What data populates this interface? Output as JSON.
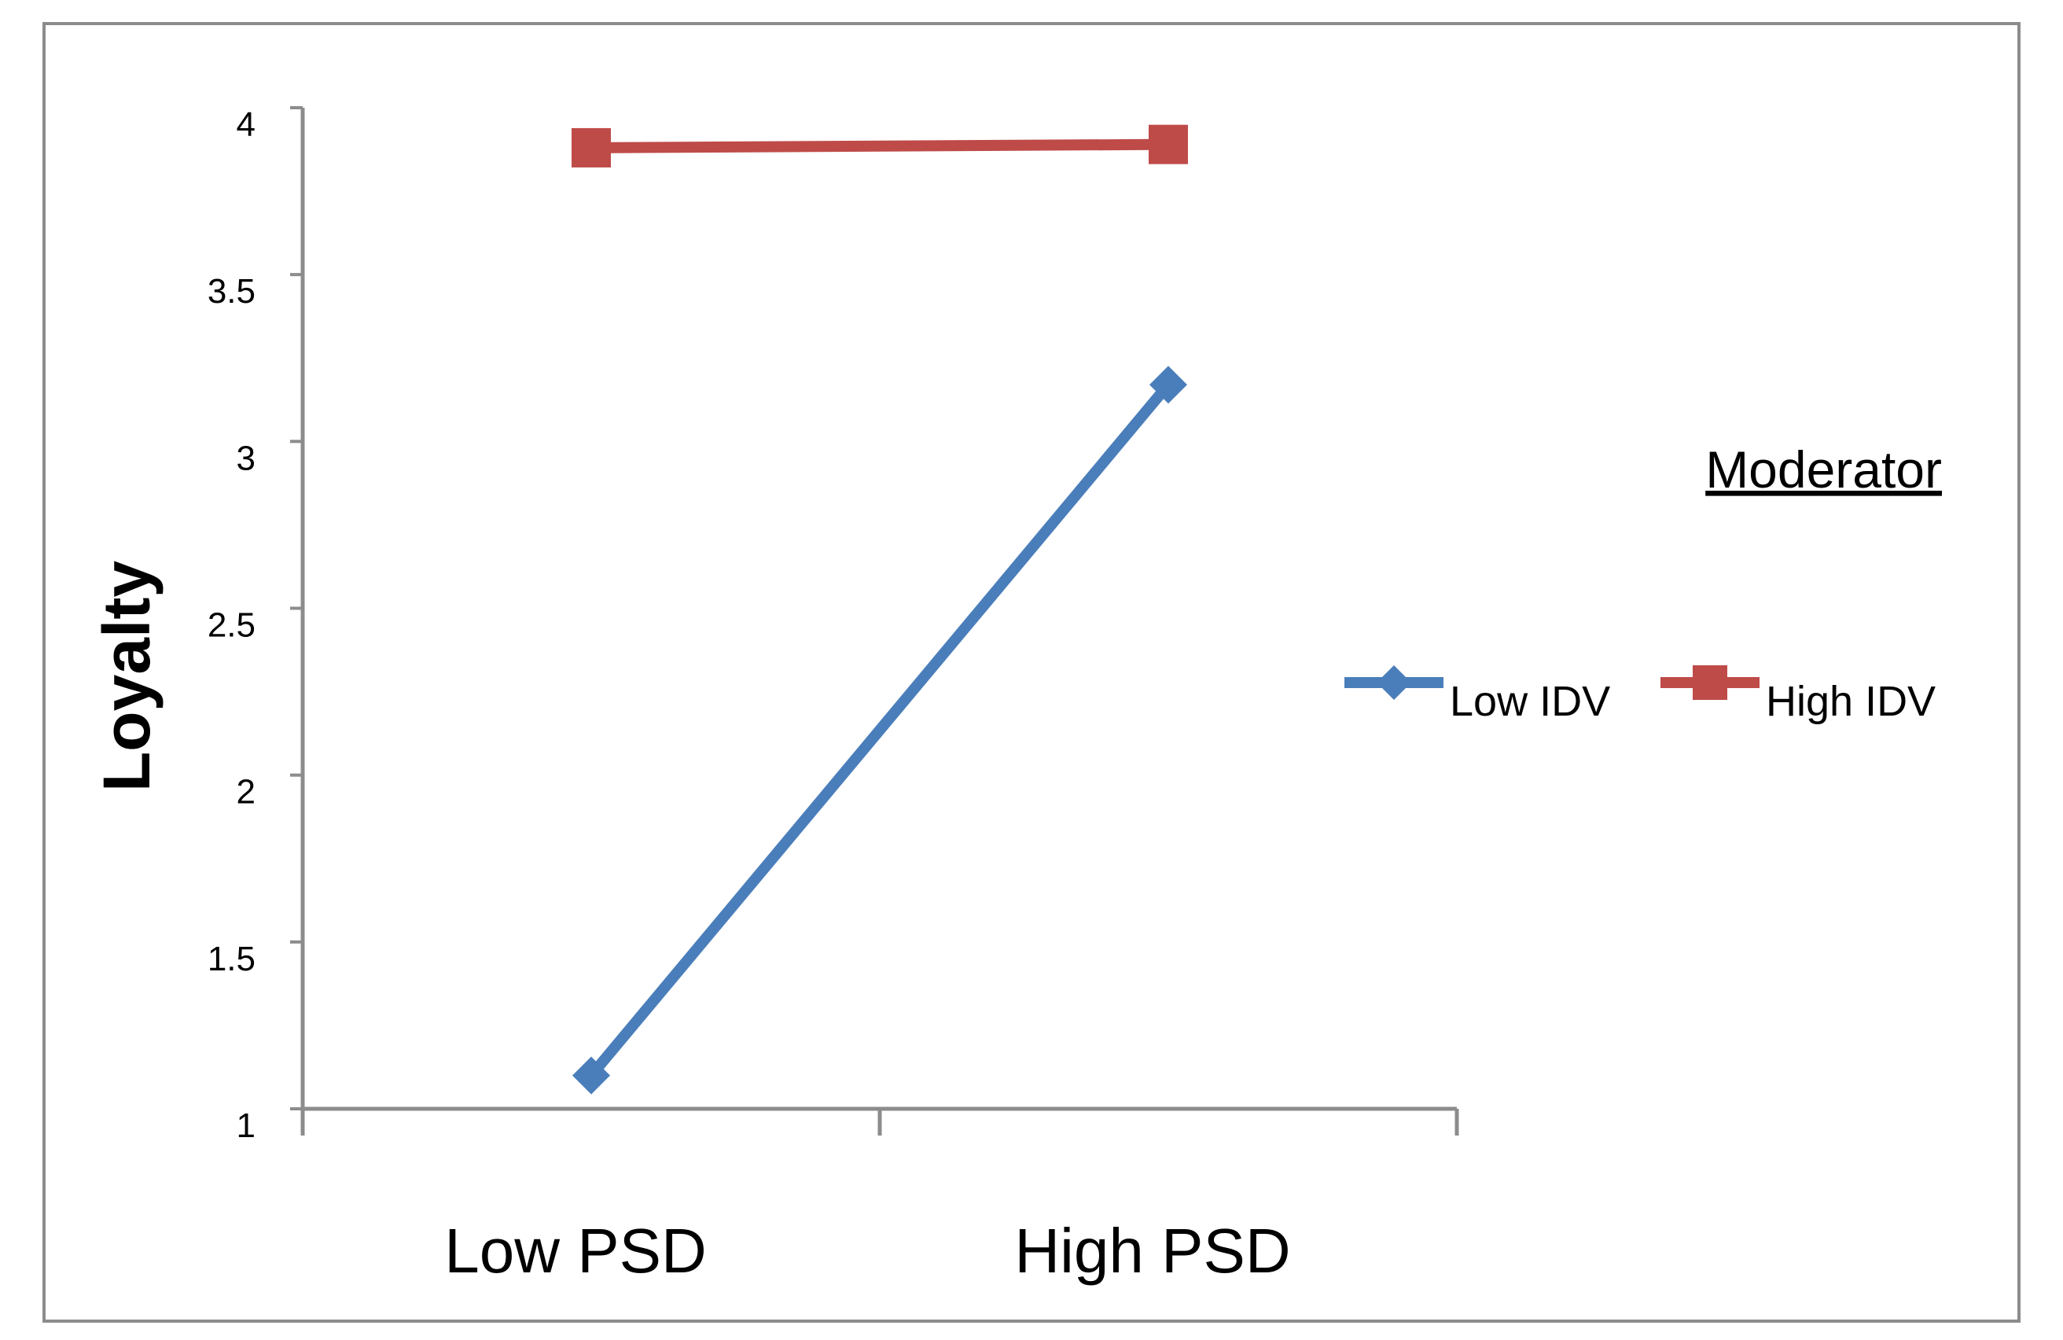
{
  "chart_data": {
    "type": "line",
    "title": "",
    "xlabel": "",
    "ylabel": "Loyalty",
    "categories": [
      "Low PSD",
      "High PSD"
    ],
    "ylim": [
      1,
      4
    ],
    "yticks": [
      "1",
      "1.5",
      "2",
      "2.5",
      "3",
      "3.5",
      "4"
    ],
    "legend_title": "Moderator",
    "legend_position": "right",
    "series": [
      {
        "name": "Low IDV",
        "values": [
          1.1,
          3.17
        ],
        "color": "#4A7EBB",
        "marker": "diamond"
      },
      {
        "name": "High IDV",
        "values": [
          3.88,
          3.89
        ],
        "color": "#BE4B48",
        "marker": "square"
      }
    ]
  }
}
